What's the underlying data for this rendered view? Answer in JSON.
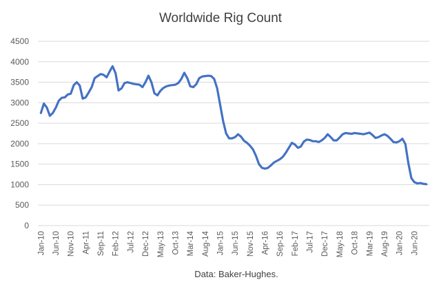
{
  "chart_data": {
    "type": "line",
    "title": "Worldwide Rig Count",
    "source_note": "Data: Baker-Hughes.",
    "xlabel": "",
    "ylabel": "",
    "ylim": [
      0,
      4500
    ],
    "yticks": [
      0,
      500,
      1000,
      1500,
      2000,
      2500,
      3000,
      3500,
      4000,
      4500
    ],
    "grid": true,
    "legend": "none",
    "colors": {
      "series": "#4472C4",
      "grid": "#D9D9D9",
      "text": "#595959"
    },
    "x_tick_labels": [
      "Jan-10",
      "Jun-10",
      "Nov-10",
      "Apr-11",
      "Sep-11",
      "Feb-12",
      "Jul-12",
      "Dec-12",
      "May-13",
      "Oct-13",
      "Mar-14",
      "Aug-14",
      "Jan-15",
      "Jun-15",
      "Nov-15",
      "Apr-16",
      "Sep-16",
      "Feb-17",
      "Jul-17",
      "Dec-17",
      "May-18",
      "Oct-18",
      "Mar-19",
      "Aug-19",
      "Jan-20",
      "Jun-20"
    ],
    "series": [
      {
        "name": "",
        "x": [
          "Jan-10",
          "Feb-10",
          "Mar-10",
          "Apr-10",
          "May-10",
          "Jun-10",
          "Jul-10",
          "Aug-10",
          "Sep-10",
          "Oct-10",
          "Nov-10",
          "Dec-10",
          "Jan-11",
          "Feb-11",
          "Mar-11",
          "Apr-11",
          "May-11",
          "Jun-11",
          "Jul-11",
          "Aug-11",
          "Sep-11",
          "Oct-11",
          "Nov-11",
          "Dec-11",
          "Jan-12",
          "Feb-12",
          "Mar-12",
          "Apr-12",
          "May-12",
          "Jun-12",
          "Jul-12",
          "Aug-12",
          "Sep-12",
          "Oct-12",
          "Nov-12",
          "Dec-12",
          "Jan-13",
          "Feb-13",
          "Mar-13",
          "Apr-13",
          "May-13",
          "Jun-13",
          "Jul-13",
          "Aug-13",
          "Sep-13",
          "Oct-13",
          "Nov-13",
          "Dec-13",
          "Jan-14",
          "Feb-14",
          "Mar-14",
          "Apr-14",
          "May-14",
          "Jun-14",
          "Jul-14",
          "Aug-14",
          "Sep-14",
          "Oct-14",
          "Nov-14",
          "Dec-14",
          "Jan-15",
          "Feb-15",
          "Mar-15",
          "Apr-15",
          "May-15",
          "Jun-15",
          "Jul-15",
          "Aug-15",
          "Sep-15",
          "Oct-15",
          "Nov-15",
          "Dec-15",
          "Jan-16",
          "Feb-16",
          "Mar-16",
          "Apr-16",
          "May-16",
          "Jun-16",
          "Jul-16",
          "Aug-16",
          "Sep-16",
          "Oct-16",
          "Nov-16",
          "Dec-16",
          "Jan-17",
          "Feb-17",
          "Mar-17",
          "Apr-17",
          "May-17",
          "Jun-17",
          "Jul-17",
          "Aug-17",
          "Sep-17",
          "Oct-17",
          "Nov-17",
          "Dec-17",
          "Jan-18",
          "Feb-18",
          "Mar-18",
          "Apr-18",
          "May-18",
          "Jun-18",
          "Jul-18",
          "Aug-18",
          "Sep-18",
          "Oct-18",
          "Nov-18",
          "Dec-18",
          "Jan-19",
          "Feb-19",
          "Mar-19",
          "Apr-19",
          "May-19",
          "Jun-19",
          "Jul-19",
          "Aug-19",
          "Sep-19",
          "Oct-19",
          "Nov-19",
          "Dec-19",
          "Jan-20",
          "Feb-20",
          "Mar-20",
          "Apr-20",
          "May-20",
          "Jun-20",
          "Jul-20",
          "Aug-20",
          "Sep-20",
          "Oct-20"
        ],
        "values": [
          2750,
          2980,
          2880,
          2680,
          2750,
          2880,
          3050,
          3120,
          3130,
          3200,
          3220,
          3430,
          3500,
          3420,
          3100,
          3130,
          3250,
          3380,
          3600,
          3650,
          3700,
          3680,
          3620,
          3760,
          3890,
          3720,
          3300,
          3350,
          3480,
          3500,
          3480,
          3460,
          3450,
          3440,
          3380,
          3500,
          3660,
          3500,
          3230,
          3180,
          3290,
          3360,
          3400,
          3420,
          3430,
          3440,
          3480,
          3580,
          3730,
          3600,
          3400,
          3380,
          3450,
          3600,
          3640,
          3650,
          3660,
          3650,
          3580,
          3350,
          2950,
          2550,
          2250,
          2130,
          2130,
          2160,
          2230,
          2170,
          2070,
          2020,
          1950,
          1860,
          1700,
          1500,
          1410,
          1390,
          1410,
          1470,
          1540,
          1580,
          1620,
          1680,
          1780,
          1900,
          2020,
          1980,
          1900,
          1930,
          2050,
          2100,
          2090,
          2060,
          2060,
          2040,
          2080,
          2140,
          2230,
          2160,
          2080,
          2080,
          2150,
          2230,
          2260,
          2250,
          2240,
          2260,
          2250,
          2240,
          2230,
          2250,
          2270,
          2210,
          2140,
          2160,
          2200,
          2230,
          2190,
          2120,
          2040,
          2030,
          2060,
          2120,
          1990,
          1520,
          1160,
          1060,
          1030,
          1040,
          1020,
          1010
        ]
      }
    ]
  }
}
